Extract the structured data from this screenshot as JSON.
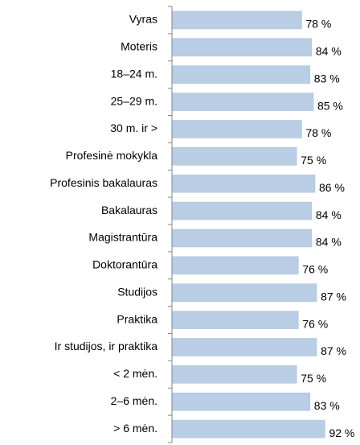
{
  "chart_data": {
    "type": "bar",
    "orientation": "horizontal",
    "categories": [
      "Vyras",
      "Moteris",
      "18–24 m.",
      "25–29 m.",
      "30 m. ir >",
      "Profesinė mokykla",
      "Profesinis bakalauras",
      "Bakalauras",
      "Magistrantūra",
      "Doktorantūra",
      "Studijos",
      "Praktika",
      "Ir studijos, ir praktika",
      "< 2 mėn.",
      "2–6 mėn.",
      "> 6 mėn."
    ],
    "values": [
      78,
      84,
      83,
      85,
      78,
      75,
      86,
      84,
      84,
      76,
      87,
      76,
      87,
      75,
      83,
      92
    ],
    "value_labels": [
      "78 %",
      "84 %",
      "83 %",
      "85 %",
      "78 %",
      "75 %",
      "86 %",
      "84 %",
      "84 %",
      "76 %",
      "87 %",
      "76 %",
      "87 %",
      "75 %",
      "83 %",
      "92 %"
    ],
    "color": "#b9cde5",
    "xlim": [
      0,
      100
    ]
  }
}
